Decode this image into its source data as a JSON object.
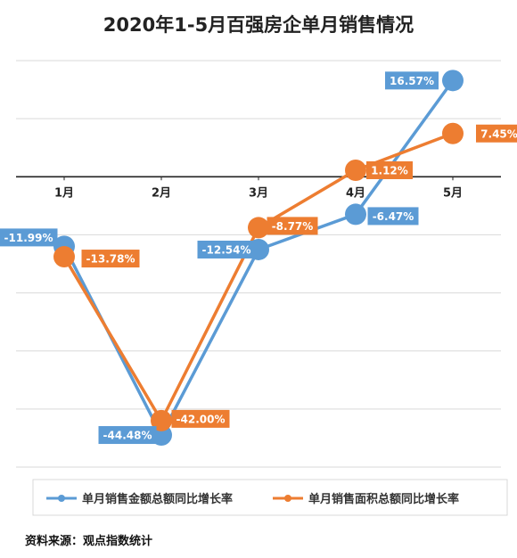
{
  "chart_data": {
    "type": "line",
    "title": "2020年1-5月百强房企单月销售情况",
    "categories": [
      "1月",
      "2月",
      "3月",
      "4月",
      "5月"
    ],
    "series": [
      {
        "name": "单月销售金额总额同比增长率",
        "color": "#5b9bd5",
        "values": [
          -11.99,
          -44.48,
          -12.54,
          -6.47,
          16.57
        ],
        "labels": [
          "-11.99%",
          "-44.48%",
          "-12.54%",
          "-6.47%",
          "16.57%"
        ]
      },
      {
        "name": "单月销售面积总额同比增长率",
        "color": "#ed7d31",
        "values": [
          -13.78,
          -42.0,
          -8.77,
          1.12,
          7.45
        ],
        "labels": [
          "-13.78%",
          "-42.00%",
          "-8.77%",
          "1.12%",
          "7.45%"
        ]
      }
    ],
    "ylim": [
      -50,
      20
    ],
    "ygrid_step": 10,
    "grid": true,
    "legend_position": "bottom",
    "xlabel": "",
    "ylabel": ""
  },
  "source": "资料来源：观点指数统计"
}
